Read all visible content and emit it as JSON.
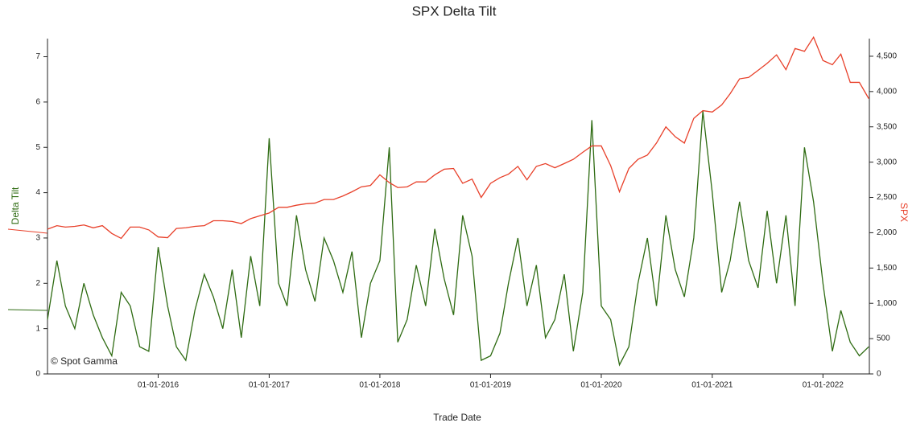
{
  "chart_data": {
    "type": "line",
    "title": "SPX Delta Tilt",
    "x_label": "Trade Date",
    "y_label": "Delta Tilt",
    "y2_label": "SPX",
    "watermark": "© Spot Gamma",
    "x": [
      "2015-01-01",
      "2015-02-01",
      "2015-03-01",
      "2015-04-01",
      "2015-05-01",
      "2015-06-01",
      "2015-07-01",
      "2015-08-01",
      "2015-09-01",
      "2015-10-01",
      "2015-11-01",
      "2015-12-01",
      "2016-01-01",
      "2016-02-01",
      "2016-03-01",
      "2016-04-01",
      "2016-05-01",
      "2016-06-01",
      "2016-07-01",
      "2016-08-01",
      "2016-09-01",
      "2016-10-01",
      "2016-11-01",
      "2016-12-01",
      "2017-01-01",
      "2017-02-01",
      "2017-03-01",
      "2017-04-01",
      "2017-05-01",
      "2017-06-01",
      "2017-07-01",
      "2017-08-01",
      "2017-09-01",
      "2017-10-01",
      "2017-11-01",
      "2017-12-01",
      "2018-01-01",
      "2018-02-01",
      "2018-03-01",
      "2018-04-01",
      "2018-05-01",
      "2018-06-01",
      "2018-07-01",
      "2018-08-01",
      "2018-09-01",
      "2018-10-01",
      "2018-11-01",
      "2018-12-01",
      "2019-01-01",
      "2019-02-01",
      "2019-03-01",
      "2019-04-01",
      "2019-05-01",
      "2019-06-01",
      "2019-07-01",
      "2019-08-01",
      "2019-09-01",
      "2019-10-01",
      "2019-11-01",
      "2019-12-01",
      "2020-01-01",
      "2020-02-01",
      "2020-03-01",
      "2020-04-01",
      "2020-05-01",
      "2020-06-01",
      "2020-07-01",
      "2020-08-01",
      "2020-09-01",
      "2020-10-01",
      "2020-11-01",
      "2020-12-01",
      "2021-01-01",
      "2021-02-01",
      "2021-03-01",
      "2021-04-01",
      "2021-05-01",
      "2021-06-01",
      "2021-07-01",
      "2021-08-01",
      "2021-09-01",
      "2021-10-01",
      "2021-11-01",
      "2021-12-01",
      "2022-01-01",
      "2022-02-01",
      "2022-03-01",
      "2022-04-01",
      "2022-05-01",
      "2022-06-01"
    ],
    "series": [
      {
        "name": "Delta Tilt",
        "color": "#2e6b12",
        "axis": "y",
        "values": [
          1.2,
          2.5,
          1.5,
          1.0,
          2.0,
          1.3,
          0.8,
          0.4,
          1.8,
          1.5,
          0.6,
          0.5,
          2.8,
          1.5,
          0.6,
          0.3,
          1.4,
          2.2,
          1.7,
          1.0,
          2.3,
          0.8,
          2.6,
          1.5,
          5.2,
          2.0,
          1.5,
          3.5,
          2.3,
          1.6,
          3.0,
          2.5,
          1.8,
          2.7,
          0.8,
          2.0,
          2.5,
          5.0,
          0.7,
          1.2,
          2.4,
          1.5,
          3.2,
          2.1,
          1.3,
          3.5,
          2.6,
          0.3,
          0.4,
          0.9,
          2.0,
          3.0,
          1.5,
          2.4,
          0.8,
          1.2,
          2.2,
          0.5,
          1.8,
          5.6,
          1.5,
          1.2,
          0.2,
          0.6,
          2.0,
          3.0,
          1.5,
          3.5,
          2.3,
          1.7,
          3.0,
          5.8,
          4.0,
          1.8,
          2.5,
          3.8,
          2.5,
          1.9,
          3.6,
          2.0,
          3.5,
          1.5,
          5.0,
          3.8,
          2.0,
          0.5,
          1.4,
          0.7,
          0.4,
          0.6
        ]
      },
      {
        "name": "SPX",
        "color": "#e8402a",
        "axis": "y2",
        "values": [
          2050,
          2100,
          2080,
          2090,
          2110,
          2070,
          2100,
          1990,
          1920,
          2080,
          2080,
          2040,
          1940,
          1930,
          2060,
          2070,
          2090,
          2100,
          2170,
          2170,
          2160,
          2130,
          2200,
          2240,
          2280,
          2360,
          2360,
          2390,
          2410,
          2420,
          2470,
          2470,
          2520,
          2580,
          2650,
          2670,
          2820,
          2710,
          2640,
          2650,
          2720,
          2720,
          2820,
          2900,
          2910,
          2700,
          2760,
          2500,
          2700,
          2780,
          2830,
          2940,
          2750,
          2940,
          2980,
          2920,
          2980,
          3040,
          3140,
          3230,
          3230,
          2950,
          2580,
          2910,
          3040,
          3100,
          3270,
          3500,
          3360,
          3270,
          3620,
          3730,
          3710,
          3810,
          3970,
          4180,
          4200,
          4300,
          4400,
          4520,
          4310,
          4610,
          4570,
          4770,
          4440,
          4380,
          4530,
          4130,
          4130,
          3900
        ]
      }
    ],
    "xlim": [
      "2015-01-01",
      "2022-06-03"
    ],
    "xticks": [
      {
        "value": "2016-01-01",
        "label": "01-01-2016"
      },
      {
        "value": "2017-01-01",
        "label": "01-01-2017"
      },
      {
        "value": "2018-01-01",
        "label": "01-01-2018"
      },
      {
        "value": "2019-01-01",
        "label": "01-01-2019"
      },
      {
        "value": "2020-01-01",
        "label": "01-01-2020"
      },
      {
        "value": "2021-01-01",
        "label": "01-01-2021"
      },
      {
        "value": "2022-01-01",
        "label": "01-01-2022"
      }
    ],
    "ylim": [
      0,
      7.4
    ],
    "yticks": [
      0,
      1,
      2,
      3,
      4,
      5,
      6,
      7
    ],
    "y2lim": [
      0,
      4750
    ],
    "y2ticks": [
      0,
      500,
      {
        "value": 1000,
        "label": "1,000"
      },
      {
        "value": 1500,
        "label": "1,500"
      },
      {
        "value": 2000,
        "label": "2,000"
      },
      {
        "value": 2500,
        "label": "2,500"
      },
      {
        "value": 3000,
        "label": "3,000"
      },
      {
        "value": 3500,
        "label": "3,500"
      },
      {
        "value": 4000,
        "label": "4,000"
      },
      {
        "value": 4500,
        "label": "4,500"
      }
    ]
  }
}
